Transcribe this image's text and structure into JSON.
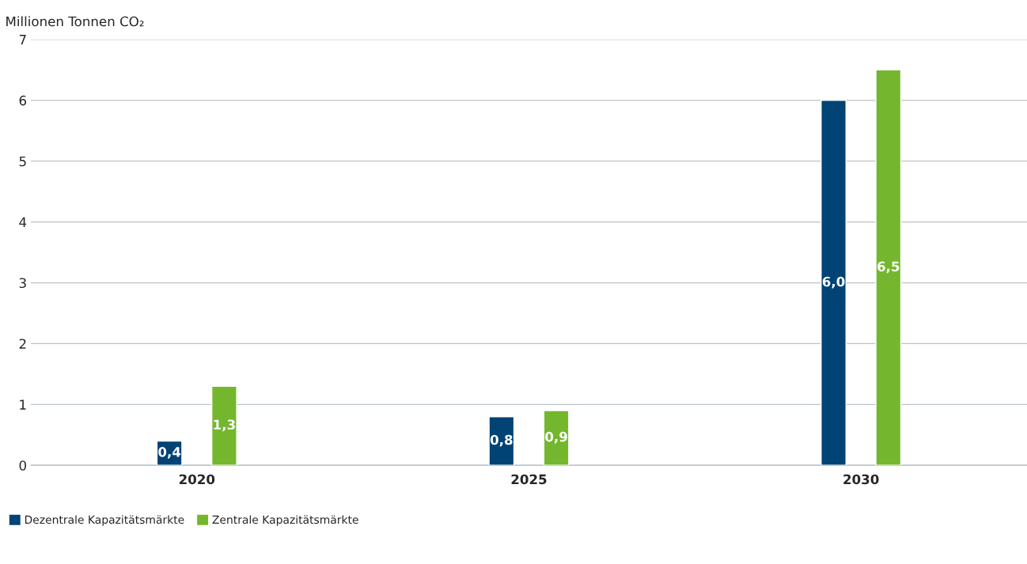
{
  "chart_data": {
    "type": "bar",
    "ylabel": "Millionen Tonnen CO₂",
    "categories": [
      "2020",
      "2025",
      "2030"
    ],
    "series": [
      {
        "name": "Dezentrale Kapazitätsmärkte",
        "color": "#004374",
        "values": [
          0.4,
          0.8,
          6.0
        ],
        "value_labels": [
          "0,4",
          "0,8",
          "6,0"
        ]
      },
      {
        "name": "Zentrale Kapazitätsmärkte",
        "color": "#74b72e",
        "values": [
          1.3,
          0.9,
          6.5
        ],
        "value_labels": [
          "1,3",
          "0,9",
          "6,5"
        ]
      }
    ],
    "ylim": [
      0,
      7
    ],
    "yticks": [
      0,
      1,
      2,
      3,
      4,
      5,
      6,
      7
    ],
    "grid": "y",
    "legend": "bottom left"
  }
}
